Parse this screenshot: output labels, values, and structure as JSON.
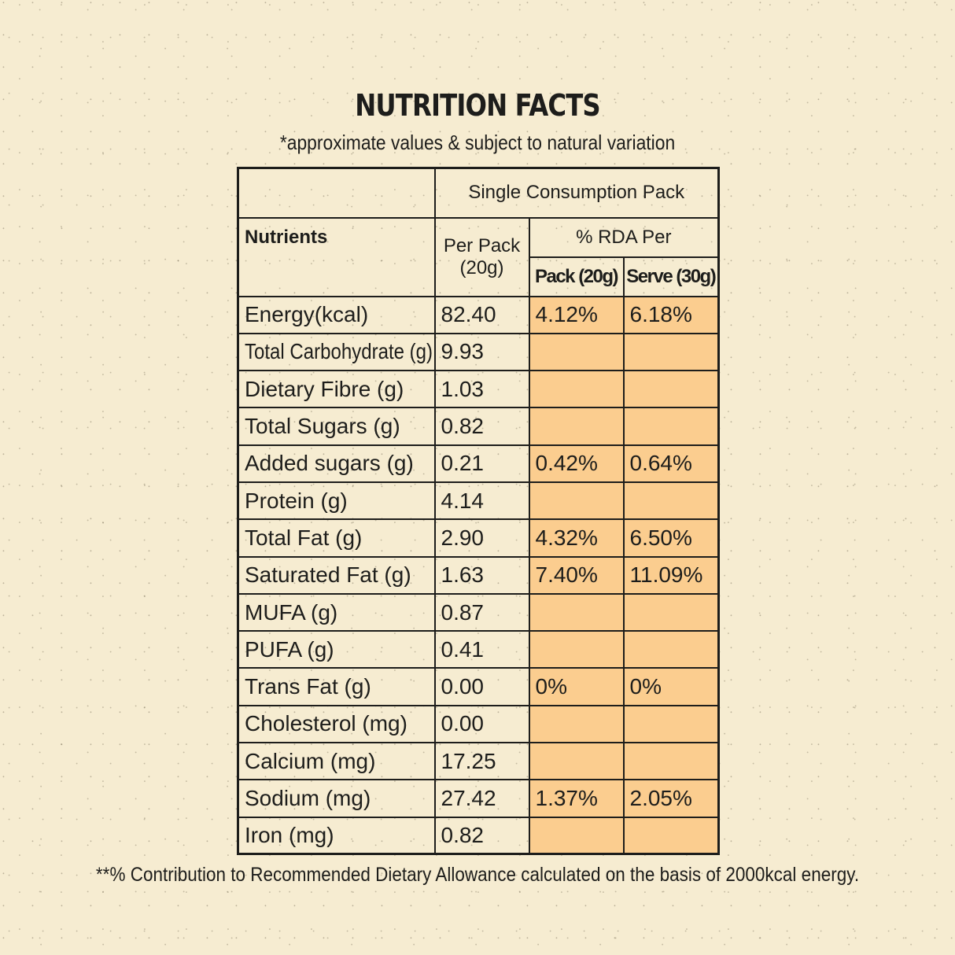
{
  "title": "NUTRITION FACTS",
  "subtitle": "*approximate values & subject to natural variation",
  "table": {
    "group_header": "Single Consumption Pack",
    "nutrients_header": "Nutrients",
    "per_pack_header": "Per Pack",
    "per_pack_unit": "(20g)",
    "rda_header": "% RDA Per",
    "rda_pack_header": "Pack (20g)",
    "rda_serve_header": "Serve (30g)",
    "rows": [
      {
        "nutrient": "Energy(kcal)",
        "per_pack": "82.40",
        "rda_pack": "4.12%",
        "rda_serve": "6.18%"
      },
      {
        "nutrient": "Total Carbohydrate (g)",
        "per_pack": "9.93",
        "rda_pack": "",
        "rda_serve": ""
      },
      {
        "nutrient": "Dietary Fibre (g)",
        "per_pack": "1.03",
        "rda_pack": "",
        "rda_serve": ""
      },
      {
        "nutrient": "Total Sugars (g)",
        "per_pack": "0.82",
        "rda_pack": "",
        "rda_serve": ""
      },
      {
        "nutrient": "Added sugars (g)",
        "per_pack": "0.21",
        "rda_pack": "0.42%",
        "rda_serve": "0.64%"
      },
      {
        "nutrient": "Protein (g)",
        "per_pack": "4.14",
        "rda_pack": "",
        "rda_serve": ""
      },
      {
        "nutrient": "Total Fat (g)",
        "per_pack": "2.90",
        "rda_pack": "4.32%",
        "rda_serve": "6.50%"
      },
      {
        "nutrient": "Saturated Fat (g)",
        "per_pack": "1.63",
        "rda_pack": "7.40%",
        "rda_serve": "11.09%"
      },
      {
        "nutrient": "MUFA (g)",
        "per_pack": "0.87",
        "rda_pack": "",
        "rda_serve": ""
      },
      {
        "nutrient": "PUFA (g)",
        "per_pack": "0.41",
        "rda_pack": "",
        "rda_serve": ""
      },
      {
        "nutrient": "Trans Fat (g)",
        "per_pack": "0.00",
        "rda_pack": "0%",
        "rda_serve": "0%"
      },
      {
        "nutrient": "Cholesterol (mg)",
        "per_pack": "0.00",
        "rda_pack": "",
        "rda_serve": ""
      },
      {
        "nutrient": "Calcium (mg)",
        "per_pack": "17.25",
        "rda_pack": "",
        "rda_serve": ""
      },
      {
        "nutrient": "Sodium (mg)",
        "per_pack": "27.42",
        "rda_pack": "1.37%",
        "rda_serve": "2.05%"
      },
      {
        "nutrient": "Iron (mg)",
        "per_pack": "0.82",
        "rda_pack": "",
        "rda_serve": ""
      }
    ]
  },
  "footnote": "**% Contribution to Recommended Dietary Allowance calculated on the basis of 2000kcal energy.",
  "colors": {
    "background": "#f6ecd1",
    "rda_fill": "#fbcd8f",
    "ink": "#1d1d1b"
  }
}
